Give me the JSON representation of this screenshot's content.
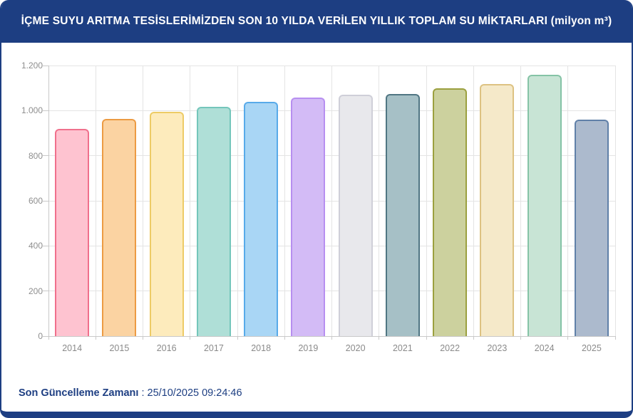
{
  "header": {
    "title": "İÇME SUYU ARITMA TESİSLERİMİZDEN SON 10 YILDA VERİLEN YILLIK TOPLAM SU MİKTARLARI (milyon m³)"
  },
  "footer": {
    "label": "Son Güncelleme Zamanı",
    "separator": " : ",
    "value": "25/10/2025 09:24:46"
  },
  "colors": {
    "navy": "#1d3e82",
    "grid": "#e4e4e4",
    "axis": "#c9c9c9",
    "tick_label": "#8e8e8e"
  },
  "chart_data": {
    "type": "bar",
    "title": "İÇME SUYU ARITMA TESİSLERİMİZDEN SON 10 YILDA VERİLEN YILLIK TOPLAM SU MİKTARLARI (milyon m³)",
    "xlabel": "",
    "ylabel": "",
    "categories": [
      "2014",
      "2015",
      "2016",
      "2017",
      "2018",
      "2019",
      "2020",
      "2021",
      "2022",
      "2023",
      "2024",
      "2025"
    ],
    "values": [
      920,
      962,
      995,
      1018,
      1038,
      1057,
      1071,
      1073,
      1100,
      1118,
      1160,
      960
    ],
    "ylim": [
      0,
      1200
    ],
    "y_tick_interval": 200,
    "y_tick_labels": [
      "0",
      "200",
      "400",
      "600",
      "800",
      "1.000",
      "1.200"
    ],
    "grid": true,
    "legend": "none",
    "bar_styles": [
      {
        "fill": "#fec3d0",
        "border": "#f0708c"
      },
      {
        "fill": "#fbd3a2",
        "border": "#ec9b43"
      },
      {
        "fill": "#fdebbc",
        "border": "#edcb66"
      },
      {
        "fill": "#afdfd7",
        "border": "#74c6bb"
      },
      {
        "fill": "#a9d6f5",
        "border": "#58aae9"
      },
      {
        "fill": "#d3bbf6",
        "border": "#b78ff0"
      },
      {
        "fill": "#e8e8ec",
        "border": "#cfcfd8"
      },
      {
        "fill": "#a6c0c6",
        "border": "#507683"
      },
      {
        "fill": "#ccd19e",
        "border": "#9ba03f"
      },
      {
        "fill": "#f5e9c9",
        "border": "#ddc282"
      },
      {
        "fill": "#c8e4d5",
        "border": "#85c3a6"
      },
      {
        "fill": "#acbacd",
        "border": "#6080a8"
      }
    ]
  }
}
